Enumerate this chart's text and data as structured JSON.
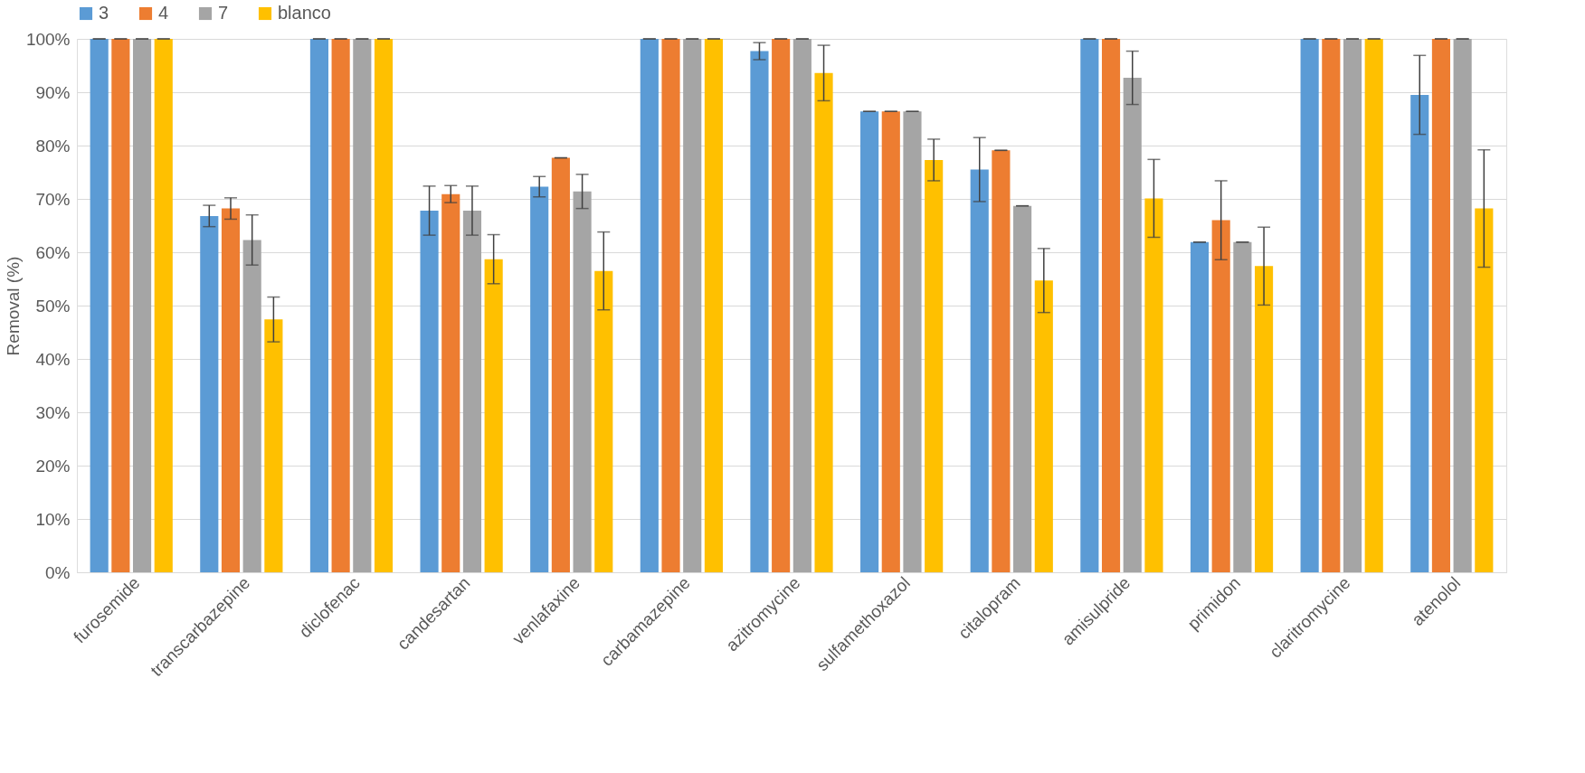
{
  "chart_data": {
    "type": "bar",
    "ylabel": "Removal (%)",
    "categories": [
      "furosemide",
      "transcarbazepine",
      "diclofenac",
      "candesartan",
      "venlafaxine",
      "carbamazepine",
      "azitromycine",
      "sulfamethoxazol",
      "citalopram",
      "amisulpride",
      "primidon",
      "claritromycine",
      "atenolol"
    ],
    "series": [
      {
        "name": "3",
        "color": "#5b9bd5",
        "values": [
          100,
          66.8,
          100,
          67.8,
          72.3,
          100,
          97.7,
          86.4,
          75.5,
          100,
          61.9,
          100,
          89.5
        ],
        "errors": [
          0,
          2,
          0,
          4.6,
          1.9,
          0,
          1.6,
          0,
          6,
          0,
          0,
          0,
          7.4
        ]
      },
      {
        "name": "4",
        "color": "#ed7d31",
        "values": [
          100,
          68.2,
          100,
          70.9,
          77.7,
          100,
          100,
          86.4,
          79.1,
          100,
          66,
          100,
          100
        ],
        "errors": [
          0,
          2,
          0,
          1.6,
          0,
          0,
          0,
          0,
          0,
          0,
          7.4,
          0,
          0
        ]
      },
      {
        "name": "7",
        "color": "#a5a5a5",
        "values": [
          100,
          62.3,
          100,
          67.8,
          71.4,
          100,
          100,
          86.4,
          68.7,
          92.7,
          61.9,
          100,
          100
        ],
        "errors": [
          0,
          4.7,
          0,
          4.6,
          3.2,
          0,
          0,
          0,
          0,
          5,
          0,
          0,
          0
        ]
      },
      {
        "name": "blanco",
        "color": "#ffc000",
        "values": [
          100,
          47.4,
          100,
          58.7,
          56.5,
          100,
          93.6,
          77.3,
          54.7,
          70.1,
          57.4,
          100,
          68.2
        ],
        "errors": [
          0,
          4.2,
          0,
          4.6,
          7.3,
          0,
          5.2,
          3.9,
          6,
          7.3,
          7.3,
          0,
          11
        ]
      }
    ],
    "ylim": [
      0,
      100
    ],
    "yticks": [
      {
        "value": 0,
        "label": "0%"
      },
      {
        "value": 10,
        "label": "10%"
      },
      {
        "value": 20,
        "label": "20%"
      },
      {
        "value": 30,
        "label": "30%"
      },
      {
        "value": 40,
        "label": "40%"
      },
      {
        "value": 50,
        "label": "50%"
      },
      {
        "value": 60,
        "label": "60%"
      },
      {
        "value": 70,
        "label": "70%"
      },
      {
        "value": 80,
        "label": "80%"
      },
      {
        "value": 90,
        "label": "90%"
      },
      {
        "value": 100,
        "label": "100%"
      }
    ],
    "grid": "y",
    "legend": "top"
  }
}
